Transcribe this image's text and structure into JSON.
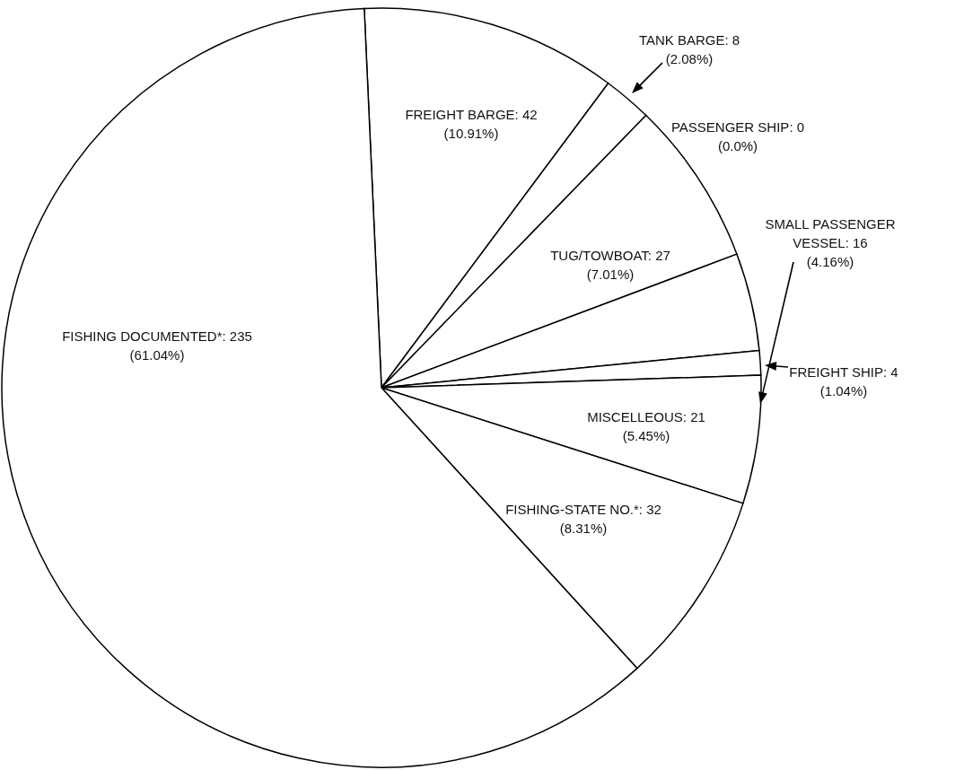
{
  "chart_data": {
    "type": "pie",
    "categories": [
      "FREIGHT BARGE: 42",
      "TANK BARGE: 8",
      "PASSENGER SHIP: 0",
      "TUG/TOWBOAT: 27",
      "SMALL PASSENGER VESSEL: 16",
      "FREIGHT SHIP: 4",
      "MISCELLEOUS: 21",
      "FISHING-STATE NO.*: 32",
      "FISHING DOCUMENTED*: 235"
    ],
    "values": [
      10.91,
      2.08,
      0,
      7.01,
      4.16,
      1.04,
      5.45,
      8.31,
      61.04
    ],
    "value_labels": [
      "(10.91%)",
      "(2.08%)",
      "(0.0%)",
      "(7.01%)",
      "(4.16%)",
      "(1.04%)",
      "(5.45%)",
      "(8.31%)",
      "(61.04%)"
    ],
    "colors": [
      "#ffffff",
      "#ffffff",
      "#ffffff",
      "#ffffff",
      "#ffffff",
      "#ffffff",
      "#ffffff",
      "#ffffff",
      "#ffffff"
    ]
  }
}
